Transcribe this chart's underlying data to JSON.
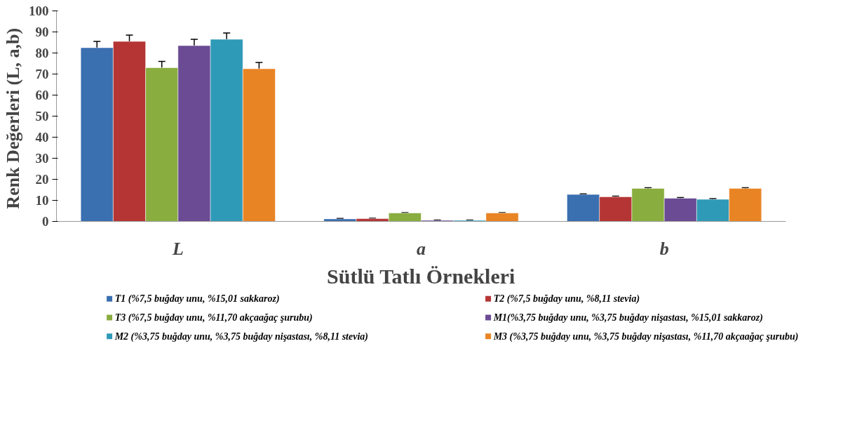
{
  "chart_data": {
    "type": "bar",
    "xlabel": "Sütlü Tatlı Örnekleri",
    "ylabel": "Renk Değerleri  (L, a,b)",
    "categories": [
      "L",
      "a",
      "b"
    ],
    "series": [
      {
        "name": "T1 (%7,5 buğday unu, %15,01 sakkaroz)",
        "color": "#3a6fb0",
        "values": [
          82.5,
          1.2,
          12.8
        ],
        "errors": [
          3,
          0.2,
          0.3
        ]
      },
      {
        "name": "T2 (%7,5 buğday unu, %8,11 stevia)",
        "color": "#b53535",
        "values": [
          85.5,
          1.3,
          11.7
        ],
        "errors": [
          3,
          0.2,
          0.3
        ]
      },
      {
        "name": "T3 (%7,5 buğday unu, %11,70 akçaağaç şurubu)",
        "color": "#8aad3f",
        "values": [
          73,
          4,
          15.7
        ],
        "errors": [
          3,
          0.2,
          0.3
        ]
      },
      {
        "name": "M1(%3,75 buğday unu, %3,75 buğday nişastası, %15,01 sakkaroz)",
        "color": "#6a4b94",
        "values": [
          83.5,
          0.5,
          11
        ],
        "errors": [
          3,
          0.2,
          0.3
        ]
      },
      {
        "name": "M2 (%3,75 buğday unu, %3,75 buğday nişastası, %8,11 stevia)",
        "color": "#2f9ab8",
        "values": [
          86.5,
          0.5,
          10.5
        ],
        "errors": [
          3,
          0.2,
          0.3
        ]
      },
      {
        "name": "M3 (%3,75 buğday unu, %3,75 buğday nişastası, %11,70 akçaağaç şurubu)",
        "color": "#e98424",
        "values": [
          72.5,
          4,
          15.7
        ],
        "errors": [
          3,
          0.2,
          0.3
        ]
      }
    ],
    "ylim": [
      0,
      100
    ],
    "yticks": [
      0,
      10,
      20,
      30,
      40,
      50,
      60,
      70,
      80,
      90,
      100
    ],
    "grid": false,
    "legend": "bottom"
  }
}
